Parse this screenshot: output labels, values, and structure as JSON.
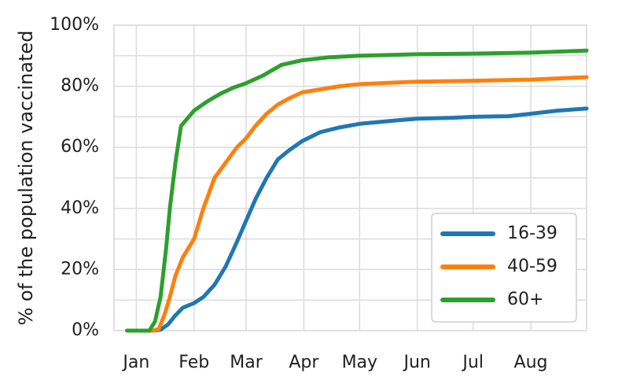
{
  "chart_data": {
    "type": "line",
    "title": "",
    "xlabel": "",
    "ylabel": "% of the population vaccinated",
    "x_ticks": [
      "Jan",
      "Feb",
      "Mar",
      "Apr",
      "May",
      "Jun",
      "Jul",
      "Aug"
    ],
    "x_tick_dates": [
      "2021-01-01",
      "2021-02-01",
      "2021-03-01",
      "2021-04-01",
      "2021-05-01",
      "2021-06-01",
      "2021-07-01",
      "2021-08-01"
    ],
    "xlim": [
      "2020-12-20",
      "2021-08-31"
    ],
    "y_ticks": [
      "0%",
      "20%",
      "40%",
      "60%",
      "80%",
      "100%"
    ],
    "y_tick_values": [
      0,
      20,
      40,
      60,
      80,
      100
    ],
    "ylim": [
      0,
      100
    ],
    "grid": true,
    "legend_position": "bottom-right",
    "series": [
      {
        "name": "16-39",
        "color": "#1f77b4",
        "x": [
          "2020-12-27",
          "2021-01-10",
          "2021-01-14",
          "2021-01-18",
          "2021-01-22",
          "2021-01-26",
          "2021-02-01",
          "2021-02-06",
          "2021-02-12",
          "2021-02-18",
          "2021-02-24",
          "2021-03-01",
          "2021-03-06",
          "2021-03-12",
          "2021-03-18",
          "2021-03-24",
          "2021-03-31",
          "2021-04-10",
          "2021-04-20",
          "2021-05-01",
          "2021-05-20",
          "2021-06-01",
          "2021-06-20",
          "2021-07-01",
          "2021-07-20",
          "2021-08-01",
          "2021-08-15",
          "2021-08-31"
        ],
        "y": [
          0,
          0,
          0.3,
          2,
          5,
          7.5,
          9,
          11,
          15,
          21,
          29,
          36,
          43,
          50,
          56,
          59,
          62,
          65,
          66.5,
          67.7,
          68.8,
          69.4,
          69.7,
          70,
          70.2,
          71,
          72,
          72.7
        ]
      },
      {
        "name": "40-59",
        "color": "#ff7f0e",
        "x": [
          "2020-12-27",
          "2021-01-10",
          "2021-01-13",
          "2021-01-16",
          "2021-01-19",
          "2021-01-22",
          "2021-01-26",
          "2021-02-01",
          "2021-02-06",
          "2021-02-12",
          "2021-02-18",
          "2021-02-24",
          "2021-03-01",
          "2021-03-06",
          "2021-03-12",
          "2021-03-18",
          "2021-03-24",
          "2021-03-31",
          "2021-04-10",
          "2021-04-20",
          "2021-05-01",
          "2021-05-20",
          "2021-06-01",
          "2021-07-01",
          "2021-08-01",
          "2021-08-31"
        ],
        "y": [
          0,
          0,
          0.5,
          5,
          11,
          18,
          24,
          30,
          40,
          50,
          55,
          60,
          63,
          67,
          71,
          74,
          76,
          78,
          79,
          80,
          80.7,
          81.2,
          81.5,
          81.8,
          82.2,
          83
        ]
      },
      {
        "name": "60+",
        "color": "#2ca02c",
        "x": [
          "2020-12-27",
          "2021-01-08",
          "2021-01-11",
          "2021-01-14",
          "2021-01-17",
          "2021-01-19",
          "2021-01-22",
          "2021-01-25",
          "2021-02-01",
          "2021-02-08",
          "2021-02-15",
          "2021-02-22",
          "2021-03-01",
          "2021-03-10",
          "2021-03-20",
          "2021-03-31",
          "2021-04-15",
          "2021-05-01",
          "2021-06-01",
          "2021-07-01",
          "2021-08-01",
          "2021-08-31"
        ],
        "y": [
          0,
          0,
          3,
          11,
          27,
          40,
          55,
          67,
          72,
          75,
          77.5,
          79.5,
          81,
          83.5,
          87,
          88.5,
          89.5,
          90,
          90.5,
          90.7,
          91,
          91.7
        ]
      }
    ]
  }
}
